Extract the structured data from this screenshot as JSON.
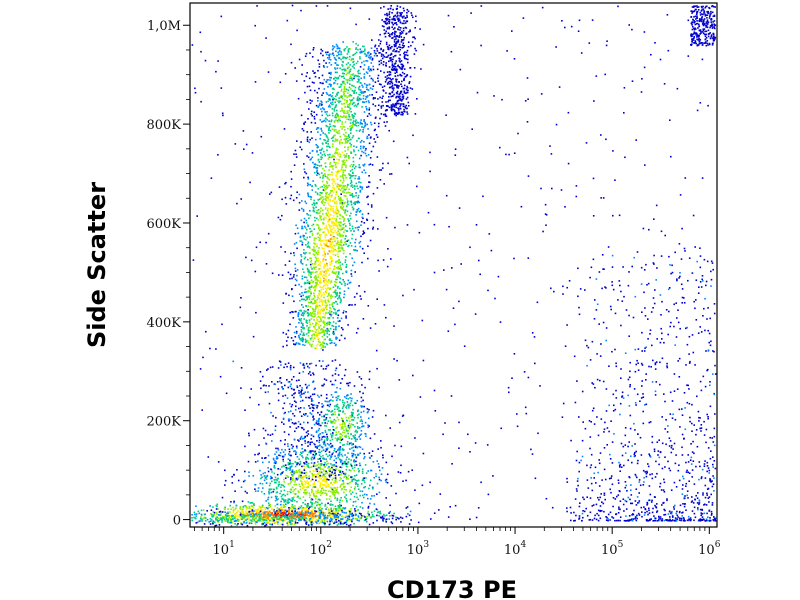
{
  "chart_data": {
    "type": "scatter",
    "title": "",
    "xlabel": "CD173 PE",
    "ylabel": "Side Scatter",
    "x_scale": "log",
    "xlim": [
      4.5,
      1200000
    ],
    "ylim": [
      -15000,
      1045000
    ],
    "x_ticks": [
      {
        "base": "10",
        "exp": "1",
        "value": 10
      },
      {
        "base": "10",
        "exp": "2",
        "value": 100
      },
      {
        "base": "10",
        "exp": "3",
        "value": 1000
      },
      {
        "base": "10",
        "exp": "4",
        "value": 10000
      },
      {
        "base": "10",
        "exp": "5",
        "value": 100000
      },
      {
        "base": "10",
        "exp": "6",
        "value": 1000000
      }
    ],
    "y_ticks": [
      {
        "label": "0",
        "value": 0
      },
      {
        "label": "200K",
        "value": 200000
      },
      {
        "label": "400K",
        "value": 400000
      },
      {
        "label": "600K",
        "value": 600000
      },
      {
        "label": "800K",
        "value": 800000
      },
      {
        "label": "1,0M",
        "value": 1000000
      }
    ],
    "grid": false,
    "color_scale": [
      "#0000cc",
      "#0088ff",
      "#00cc88",
      "#88ee00",
      "#ffee00",
      "#ff8800",
      "#ee0000"
    ],
    "series": [
      {
        "type": "density",
        "points": [
          [
            60,
            5000
          ],
          [
            80,
            4000
          ],
          [
            100,
            6000
          ],
          [
            40,
            8000
          ],
          [
            120,
            8000
          ],
          [
            50,
            12000
          ],
          [
            90,
            9000
          ],
          [
            25,
            10000
          ],
          [
            150,
            6000
          ],
          [
            200,
            15000
          ]
        ]
      },
      {
        "type": "density",
        "points": [
          [
            150,
            70000
          ],
          [
            180,
            90000
          ],
          [
            200,
            80000
          ],
          [
            250,
            100000
          ],
          [
            120,
            60000
          ],
          [
            300,
            75000
          ],
          [
            220,
            110000
          ],
          [
            170,
            55000
          ]
        ]
      },
      {
        "type": "density",
        "points": [
          [
            250,
            180000
          ],
          [
            280,
            210000
          ],
          [
            300,
            230000
          ],
          [
            260,
            160000
          ],
          [
            320,
            250000
          ],
          [
            230,
            200000
          ]
        ]
      },
      {
        "type": "density",
        "points": [
          [
            250,
            420000
          ],
          [
            280,
            480000
          ],
          [
            300,
            520000
          ],
          [
            320,
            600000
          ],
          [
            340,
            650000
          ],
          [
            360,
            700000
          ],
          [
            380,
            750000
          ],
          [
            300,
            560000
          ],
          [
            270,
            450000
          ],
          [
            350,
            680000
          ]
        ]
      },
      {
        "type": "density",
        "points": [
          [
            100000,
            30000
          ],
          [
            200000,
            50000
          ],
          [
            300000,
            70000
          ],
          [
            500000,
            60000
          ],
          [
            150000,
            20000
          ],
          [
            400000,
            100000
          ],
          [
            800000,
            40000
          ],
          [
            250000,
            150000
          ]
        ]
      }
    ]
  }
}
